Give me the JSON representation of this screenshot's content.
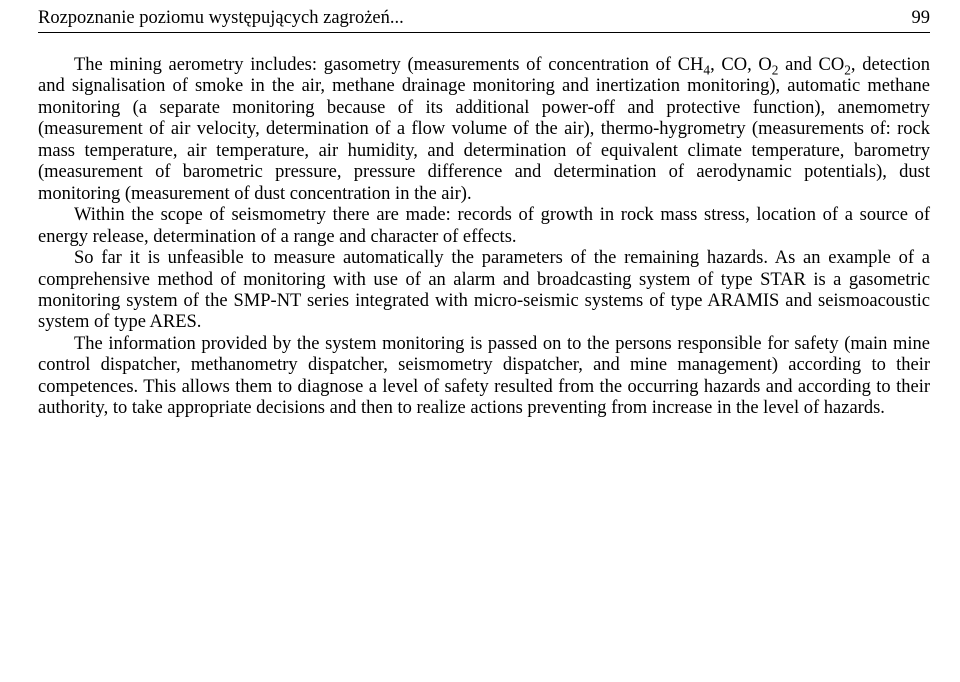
{
  "header": {
    "title": "Rozpoznanie poziomu występujących zagrożeń...",
    "page_number": "99"
  },
  "paragraphs": {
    "p1_pre": "The mining aerometry includes: gasometry (measurements of concentration of CH",
    "p1_sub1": "4",
    "p1_mid1": ", CO, O",
    "p1_sub2": "2",
    "p1_mid2": " and CO",
    "p1_sub3": "2",
    "p1_post": ", detection and signalisation of smoke in the air, methane drainage monitoring and inertization monitoring), automatic methane monitoring (a separate monitoring because of its additional power-off and protective function), anemometry (measurement of air velocity, determination of a flow volume of the air), thermo-hygrometry (measurements of: rock mass temperature, air temperature, air humidity, and determination of equivalent climate temperature, barometry (measurement of barometric pressure, pressure difference and determination of aerodynamic potentials), dust monitoring (measurement of dust concentration in the air).",
    "p2": "Within the scope of seismometry there are made: records of growth in rock mass stress, location of a source of energy release, determination of a range and character of effects.",
    "p3": "So far it is unfeasible to measure automatically the parameters of the remaining hazards. As an example of a comprehensive method of monitoring with use of an alarm and broadcasting system of type STAR is a gasometric monitoring system of the SMP-NT series integrated with micro-seismic systems of type ARAMIS and seismoacoustic system of type ARES.",
    "p4": "The information provided by the system monitoring is passed on to the persons responsible for safety (main mine control dispatcher, methanometry dispatcher, seismometry dispatcher, and mine management) according to their competences. This allows them to diagnose a level of safety resulted from the occurring hazards and according to their authority, to take appropriate decisions and then to realize actions preventing from increase in the level of hazards."
  }
}
